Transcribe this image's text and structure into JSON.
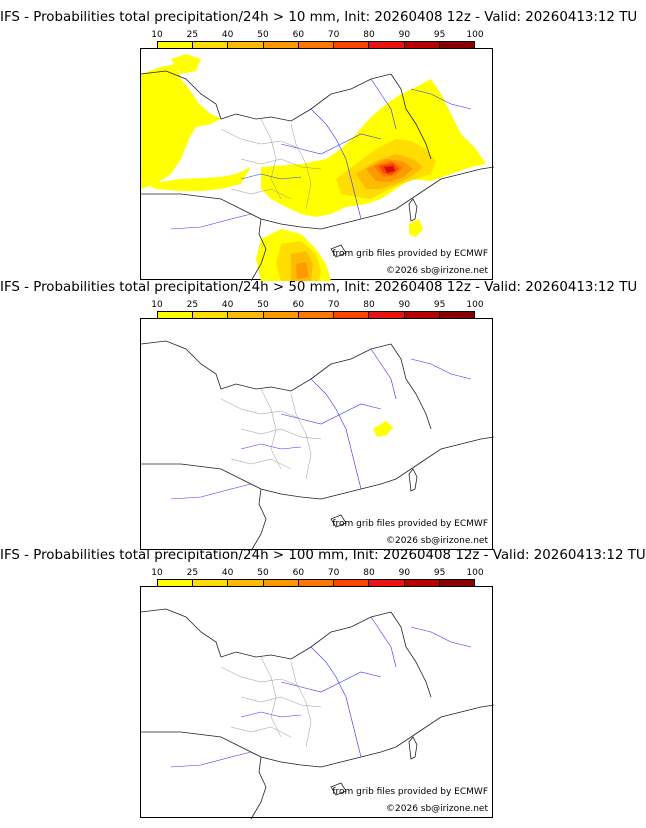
{
  "colorbar": {
    "ticks": [
      "10",
      "25",
      "40",
      "50",
      "60",
      "70",
      "80",
      "90",
      "95",
      "100"
    ],
    "colors": [
      "#ffff00",
      "#ffdd00",
      "#ffbb00",
      "#ff9900",
      "#ff7700",
      "#ff4400",
      "#ee1111",
      "#bb0000",
      "#880000"
    ]
  },
  "panels": [
    {
      "title": "IFS - Probabilities total precipitation/24h > 10 mm, Init: 20260408 12z - Valid: 20260413:12 TU",
      "credit_source": "from grib files provided by ECMWF",
      "credit_copyright": "©2026 sb@irizone.net"
    },
    {
      "title": "IFS - Probabilities total precipitation/24h > 50 mm, Init: 20260408 12z - Valid: 20260413:12 TU",
      "credit_source": "from grib files provided by ECMWF",
      "credit_copyright": "©2026 sb@irizone.net"
    },
    {
      "title": "IFS - Probabilities total precipitation/24h > 100 mm, Init: 20260408 12z - Valid: 20260413:12 TU",
      "credit_source": "from grib files provided by ECMWF",
      "credit_copyright": "©2026 sb@irizone.net"
    }
  ]
}
